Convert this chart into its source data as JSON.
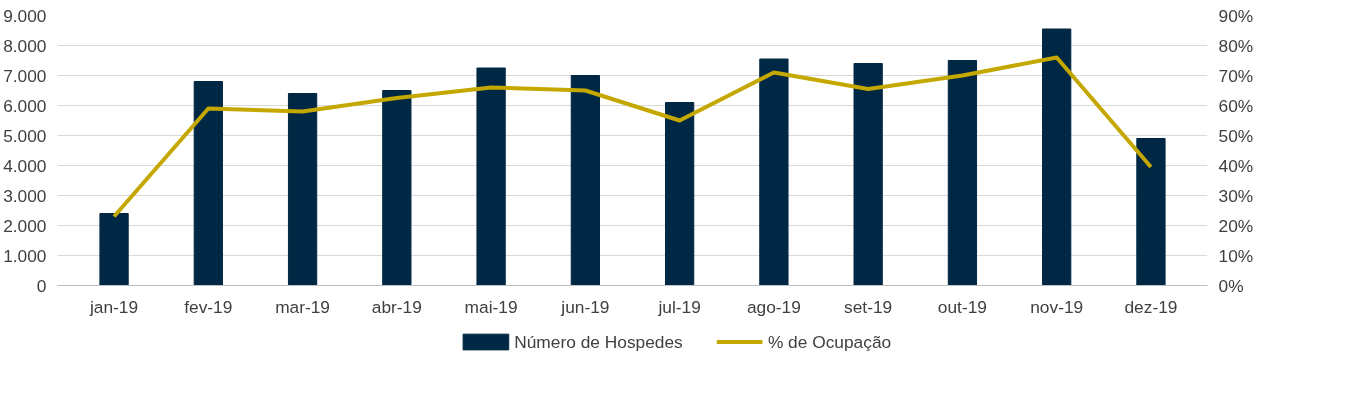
{
  "chart_data": {
    "type": "bar",
    "categories": [
      "jan-19",
      "fev-19",
      "mar-19",
      "abr-19",
      "mai-19",
      "jun-19",
      "jul-19",
      "ago-19",
      "set-19",
      "out-19",
      "nov-19",
      "dez-19"
    ],
    "series": [
      {
        "name": "Número de Hospedes",
        "type": "bar",
        "color": "#002845",
        "values": [
          2400,
          6800,
          6400,
          6500,
          7250,
          7000,
          6100,
          7550,
          7400,
          7500,
          8550,
          4900
        ]
      },
      {
        "name": "% de Ocupação",
        "type": "line",
        "axis": "y2",
        "color": "#c4a800",
        "values": [
          23,
          59,
          58,
          62.5,
          66,
          65,
          55,
          71,
          65.5,
          70,
          76,
          39.5
        ]
      }
    ],
    "ylim": [
      0,
      9000
    ],
    "yticks": [
      {
        "value": 0,
        "label": "0"
      },
      {
        "value": 1000,
        "label": "1.000"
      },
      {
        "value": 2000,
        "label": "2.000"
      },
      {
        "value": 3000,
        "label": "3.000"
      },
      {
        "value": 4000,
        "label": "4.000"
      },
      {
        "value": 5000,
        "label": "5.000"
      },
      {
        "value": 6000,
        "label": "6.000"
      },
      {
        "value": 7000,
        "label": "7.000"
      },
      {
        "value": 8000,
        "label": "8.000"
      },
      {
        "value": 9000,
        "label": "9.000"
      }
    ],
    "y2lim": [
      0,
      90
    ],
    "y2ticks": [
      {
        "value": 0,
        "label": "0%"
      },
      {
        "value": 10,
        "label": "10%"
      },
      {
        "value": 20,
        "label": "20%"
      },
      {
        "value": 30,
        "label": "30%"
      },
      {
        "value": 40,
        "label": "40%"
      },
      {
        "value": 50,
        "label": "50%"
      },
      {
        "value": 60,
        "label": "60%"
      },
      {
        "value": 70,
        "label": "70%"
      },
      {
        "value": 80,
        "label": "80%"
      },
      {
        "value": 90,
        "label": "90%"
      }
    ],
    "grid": "y",
    "legend": "bottom",
    "marker": "none",
    "line_style": "solid"
  }
}
